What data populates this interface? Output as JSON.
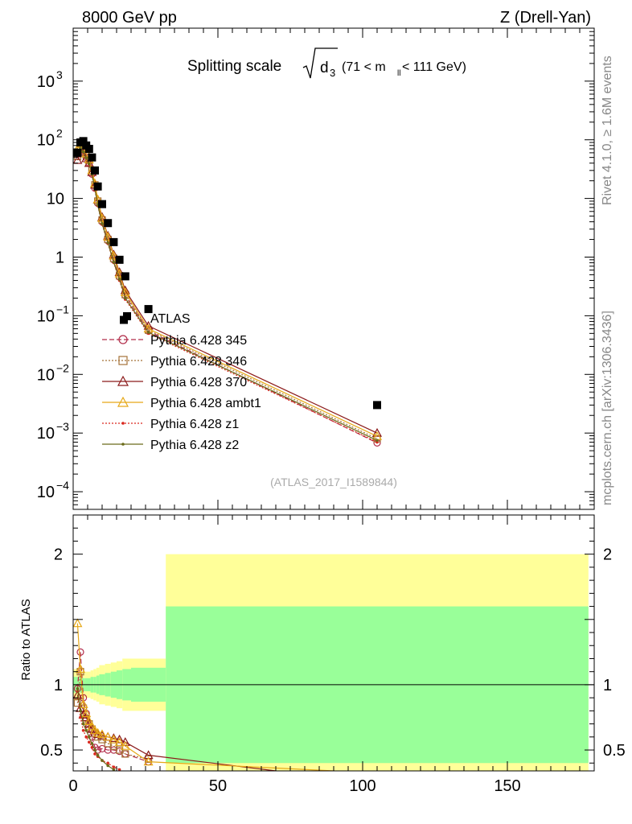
{
  "header": {
    "left": "8000 GeV pp",
    "right": "Z (Drell-Yan)"
  },
  "side_labels": {
    "rivet": "Rivet 4.1.0, ≥ 1.6M events",
    "mcplots": "mcplots.cern.ch [arXiv:1306.3436]"
  },
  "chart_data": {
    "type": "scatter",
    "title_main": "Splitting scale",
    "title_symbol": "d",
    "title_subscript": "3",
    "title_range_pre": "(71 < m",
    "title_range_sub": "ll",
    "title_range_post": " < 111 GeV)",
    "analysis_id": "(ATLAS_2017_I1589844)",
    "xlabel": "",
    "ylabel_ratio": "Ratio to ATLAS",
    "xlim": [
      0,
      180
    ],
    "ylim_main": [
      5e-05,
      8000
    ],
    "ylim_ratio": [
      0.34,
      2.3
    ],
    "x_ticks": [
      0,
      50,
      100,
      150
    ],
    "x_tick_labels": [
      "0",
      "50",
      "100",
      "150"
    ],
    "y_ticks_main": [
      0.0001,
      0.001,
      0.01,
      0.1,
      1,
      10,
      100,
      1000
    ],
    "y_tick_labels_main": [
      {
        "base": "10",
        "exp": "−4"
      },
      {
        "base": "10",
        "exp": "−3"
      },
      {
        "base": "10",
        "exp": "−2"
      },
      {
        "base": "10",
        "exp": "−1"
      },
      {
        "base": "1",
        "exp": ""
      },
      {
        "base": "10",
        "exp": ""
      },
      {
        "base": "10",
        "exp": "2"
      },
      {
        "base": "10",
        "exp": "3"
      }
    ],
    "y_ticks_ratio": [
      0.5,
      1,
      2
    ],
    "y_tick_labels_ratio": [
      "0.5",
      "1",
      "2"
    ],
    "data": {
      "name": "ATLAS",
      "x": [
        1.5,
        2.5,
        3.5,
        4.5,
        5.5,
        6.5,
        7.5,
        8.5,
        10,
        12,
        14,
        16,
        18,
        26,
        105
      ],
      "y": [
        60,
        90,
        95,
        80,
        70,
        50,
        30,
        16,
        8,
        3.8,
        1.8,
        0.9,
        0.47,
        0.13,
        0.003
      ],
      "extra": [
        {
          "x": 17.5,
          "y": 0.085
        }
      ],
      "edges": [
        0,
        2,
        3,
        4,
        5,
        6,
        7,
        8,
        9,
        11,
        13,
        15,
        17,
        20,
        32,
        178
      ],
      "band_inner": [
        0.06,
        0.06,
        0.05,
        0.05,
        0.05,
        0.06,
        0.06,
        0.07,
        0.08,
        0.09,
        0.1,
        0.11,
        0.12,
        0.13,
        0.6
      ],
      "band_outer": [
        0.12,
        0.12,
        0.1,
        0.1,
        0.1,
        0.11,
        0.12,
        0.13,
        0.15,
        0.16,
        0.17,
        0.18,
        0.2,
        0.2,
        1.0
      ]
    },
    "series": [
      {
        "name": "Pythia 6.428 345",
        "color": "#b22d4a",
        "marker": "circle-open",
        "dash": "6,3",
        "x": [
          1.5,
          2.5,
          3.5,
          4.5,
          5.5,
          6.5,
          7.5,
          8.5,
          10,
          12,
          14,
          16,
          18,
          26,
          105
        ],
        "y": [
          58,
          72,
          62,
          50,
          40,
          26,
          15,
          8.3,
          4,
          1.9,
          0.9,
          0.46,
          0.22,
          0.055,
          0.00068
        ],
        "ratio_x": [
          1.5,
          2.5,
          3.5,
          4.5,
          5.5,
          6.5,
          7.5,
          8.5,
          10,
          12,
          14,
          16,
          18,
          26
        ],
        "ratio": [
          0.97,
          1.25,
          0.9,
          0.78,
          0.66,
          0.6,
          0.52,
          0.5,
          0.51,
          0.5,
          0.5,
          0.49,
          0.47,
          0.41
        ]
      },
      {
        "name": "Pythia 6.428 346",
        "color": "#a57238",
        "marker": "square-open",
        "dash": "2,2",
        "x": [
          1.5,
          2.5,
          3.5,
          4.5,
          5.5,
          6.5,
          7.5,
          8.5,
          10,
          12,
          14,
          16,
          18,
          26,
          105
        ],
        "y": [
          52,
          78,
          70,
          56,
          45,
          30,
          17,
          9,
          4.3,
          2,
          0.95,
          0.48,
          0.23,
          0.057,
          0.0008
        ],
        "ratio_x": [
          1.5,
          2.5,
          3.5,
          4.5,
          5.5,
          6.5,
          7.5,
          8.5,
          10,
          12,
          14,
          16,
          18,
          26
        ],
        "ratio": [
          0.86,
          1.1,
          0.82,
          0.74,
          0.7,
          0.66,
          0.63,
          0.6,
          0.58,
          0.55,
          0.53,
          0.5,
          0.47,
          0.43
        ]
      },
      {
        "name": "Pythia 6.428 370",
        "color": "#8b1a1a",
        "marker": "triangle-open",
        "dash": "",
        "x": [
          1.5,
          2.5,
          3.5,
          4.5,
          5.5,
          6.5,
          7.5,
          8.5,
          10,
          12,
          14,
          16,
          18,
          26,
          105
        ],
        "y": [
          45,
          62,
          58,
          48,
          40,
          28,
          17,
          9.5,
          4.8,
          2.3,
          1.1,
          0.55,
          0.27,
          0.067,
          0.001
        ],
        "ratio_x": [
          1.5,
          2.5,
          3.5,
          4.5,
          5.5,
          6.5,
          7.5,
          8.5,
          10,
          12,
          14,
          16,
          18,
          26,
          70
        ],
        "ratio": [
          0.92,
          0.82,
          0.77,
          0.75,
          0.7,
          0.66,
          0.63,
          0.62,
          0.61,
          0.6,
          0.59,
          0.58,
          0.56,
          0.46,
          0.34
        ]
      },
      {
        "name": "Pythia 6.428 ambt1",
        "color": "#e6a817",
        "marker": "triangle-open",
        "dash": "",
        "x": [
          1.5,
          2.5,
          3.5,
          4.5,
          5.5,
          6.5,
          7.5,
          8.5,
          10,
          12,
          14,
          16,
          18,
          26,
          105
        ],
        "y": [
          70,
          85,
          72,
          58,
          46,
          30,
          18,
          9.6,
          4.6,
          2.2,
          1.05,
          0.52,
          0.25,
          0.06,
          0.00088
        ],
        "ratio_x": [
          1.5,
          2.5,
          3.5,
          4.5,
          5.5,
          6.5,
          7.5,
          8.5,
          10,
          12,
          14,
          16,
          18,
          26,
          90
        ],
        "ratio": [
          1.47,
          1.12,
          0.85,
          0.78,
          0.72,
          0.68,
          0.65,
          0.63,
          0.62,
          0.6,
          0.58,
          0.56,
          0.53,
          0.41,
          0.34
        ]
      },
      {
        "name": "Pythia 6.428 z1",
        "color": "#d9281e",
        "marker": "dot",
        "dash": "2,2",
        "x": [
          1.5,
          2.5,
          3.5,
          4.5,
          5.5,
          6.5,
          7.5,
          8.5,
          10,
          12,
          14,
          16,
          18,
          26,
          105
        ],
        "y": [
          55,
          70,
          60,
          48,
          38,
          25,
          14,
          7.5,
          3.6,
          1.7,
          0.8,
          0.4,
          0.19,
          0.05,
          0.0007
        ],
        "ratio_x": [
          1.5,
          2.5,
          3.5,
          4.5,
          5.5,
          6.5,
          7.5,
          8.5,
          10,
          12,
          14,
          16
        ],
        "ratio": [
          0.95,
          0.75,
          0.65,
          0.6,
          0.56,
          0.52,
          0.47,
          0.45,
          0.42,
          0.4,
          0.37,
          0.35
        ]
      },
      {
        "name": "Pythia 6.428 z2",
        "color": "#6b6b1a",
        "marker": "dot",
        "dash": "",
        "x": [
          1.5,
          2.5,
          3.5,
          4.5,
          5.5,
          6.5,
          7.5,
          8.5,
          10,
          12,
          14,
          16,
          18,
          26,
          105
        ],
        "y": [
          58,
          72,
          62,
          49,
          39,
          26,
          14.5,
          7.7,
          3.7,
          1.75,
          0.82,
          0.42,
          0.2,
          0.052,
          0.00075
        ],
        "ratio_x": [
          1.5,
          2.5,
          3.5,
          4.5,
          5.5,
          6.5,
          7.5,
          8.5,
          10,
          12,
          14
        ],
        "ratio": [
          0.97,
          0.8,
          0.7,
          0.65,
          0.6,
          0.55,
          0.5,
          0.46,
          0.42,
          0.38,
          0.35
        ]
      }
    ],
    "legend": {
      "placement": "center-left",
      "title": "ATLAS"
    }
  }
}
